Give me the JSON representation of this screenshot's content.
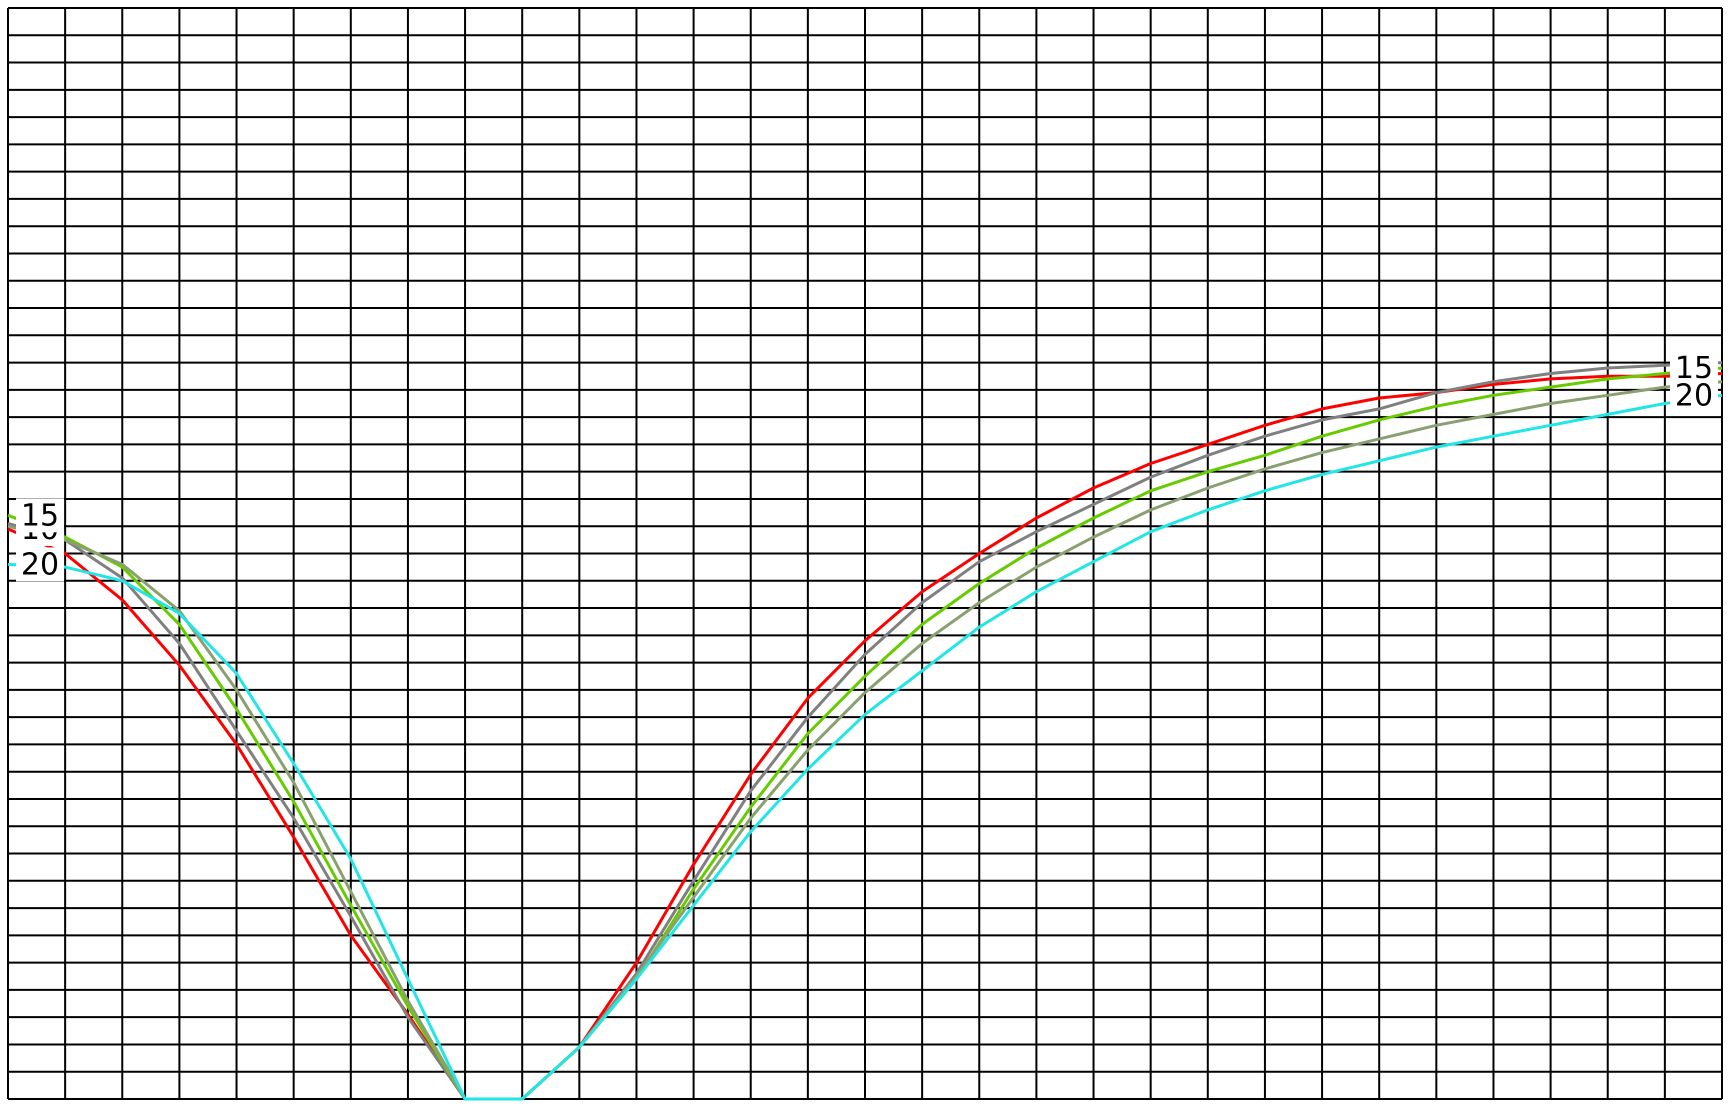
{
  "chart_data": {
    "type": "line",
    "title": "",
    "xlabel": "",
    "ylabel": "",
    "xlim": [
      0,
      30
    ],
    "ylim": [
      0,
      40
    ],
    "grid": true,
    "grid_color": "#000000",
    "series": [
      {
        "name": "10",
        "color": "#ff0000",
        "x": [
          0,
          1,
          2,
          3,
          4,
          5,
          6,
          7,
          8,
          9,
          10,
          11,
          12,
          13,
          14,
          15,
          16,
          17,
          18,
          19,
          20,
          21,
          22,
          23,
          24,
          25,
          26,
          27,
          28,
          29,
          30
        ],
        "y": [
          20.9,
          20.0,
          18.3,
          15.9,
          13.0,
          9.6,
          6.0,
          3.1,
          0.0,
          0.0,
          1.9,
          5.0,
          8.6,
          11.9,
          14.7,
          16.8,
          18.6,
          20.0,
          21.3,
          22.4,
          23.3,
          24.0,
          24.7,
          25.3,
          25.7,
          25.9,
          26.2,
          26.4,
          26.5,
          26.5,
          26.6
        ]
      },
      {
        "name": "",
        "color": "#808080",
        "x": [
          0,
          1,
          2,
          3,
          4,
          5,
          6,
          7,
          8,
          9,
          10,
          11,
          12,
          13,
          14,
          15,
          16,
          17,
          18,
          19,
          20,
          21,
          22,
          23,
          24,
          25,
          26,
          27,
          28,
          29,
          30
        ],
        "y": [
          21.1,
          20.5,
          19.1,
          16.7,
          13.5,
          10.3,
          6.7,
          3.0,
          0.0,
          0.0,
          1.9,
          4.6,
          8.0,
          11.3,
          14.0,
          16.3,
          18.2,
          19.7,
          20.8,
          21.8,
          22.8,
          23.6,
          24.3,
          24.9,
          25.3,
          25.9,
          26.3,
          26.6,
          26.8,
          26.9,
          27.0
        ]
      },
      {
        "name": "15",
        "color": "#66cc00",
        "x": [
          0,
          1,
          2,
          3,
          4,
          5,
          6,
          7,
          8,
          9,
          10,
          11,
          12,
          13,
          14,
          15,
          16,
          17,
          18,
          19,
          20,
          21,
          22,
          23,
          24,
          25,
          26,
          27,
          28,
          29,
          30
        ],
        "y": [
          21.4,
          20.6,
          19.5,
          17.4,
          14.3,
          10.9,
          7.1,
          3.4,
          0.0,
          0.0,
          1.9,
          4.4,
          7.7,
          10.7,
          13.4,
          15.5,
          17.4,
          18.9,
          20.2,
          21.3,
          22.3,
          23.0,
          23.6,
          24.3,
          24.9,
          25.4,
          25.8,
          26.1,
          26.4,
          26.6,
          26.8
        ]
      },
      {
        "name": "",
        "color": "#8aa070",
        "x": [
          0,
          1,
          2,
          3,
          4,
          5,
          6,
          7,
          8,
          9,
          10,
          11,
          12,
          13,
          14,
          15,
          16,
          17,
          18,
          19,
          20,
          21,
          22,
          23,
          24,
          25,
          26,
          27,
          28,
          29,
          30
        ],
        "y": [
          21.0,
          20.5,
          19.6,
          17.9,
          15.0,
          11.6,
          7.6,
          3.6,
          0.0,
          0.0,
          1.9,
          4.5,
          7.4,
          10.3,
          12.8,
          14.9,
          16.7,
          18.2,
          19.5,
          20.6,
          21.6,
          22.4,
          23.1,
          23.7,
          24.2,
          24.7,
          25.1,
          25.5,
          25.8,
          26.1,
          26.3
        ]
      },
      {
        "name": "20",
        "color": "#22e6e6",
        "x": [
          0,
          1,
          2,
          3,
          4,
          5,
          6,
          7,
          8,
          9,
          10,
          11,
          12,
          13,
          14,
          15,
          16,
          17,
          18,
          19,
          20,
          21,
          22,
          23,
          24,
          25,
          26,
          27,
          28,
          29,
          30
        ],
        "y": [
          19.6,
          19.5,
          19.0,
          17.8,
          15.6,
          12.3,
          8.8,
          4.4,
          0.0,
          0.0,
          1.9,
          4.4,
          7.1,
          9.8,
          12.1,
          14.1,
          15.7,
          17.3,
          18.6,
          19.7,
          20.8,
          21.6,
          22.3,
          22.9,
          23.4,
          23.9,
          24.3,
          24.7,
          25.1,
          25.5,
          25.8
        ]
      }
    ]
  }
}
